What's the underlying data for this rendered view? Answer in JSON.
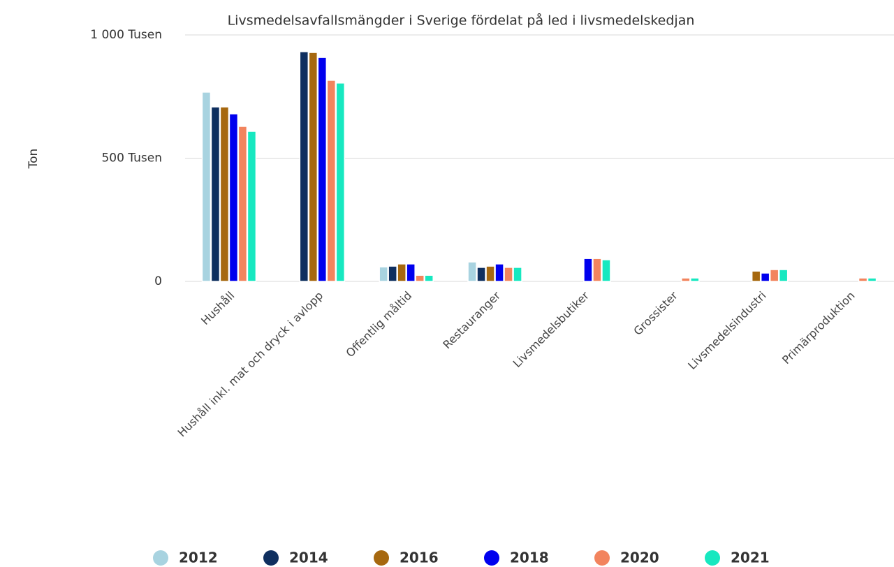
{
  "chart_data": {
    "type": "bar",
    "title": "Livsmedelsavfallsmängder i Sverige fördelat på led i livsmedelskedjan",
    "y_label": "Ton",
    "categories": [
      "Hushåll",
      "Hushåll inkl. mat och dryck i avlopp",
      "Offentlig måltid",
      "Restauranger",
      "Livsmedelsbutiker",
      "Grossister",
      "Livsmedelsindustri",
      "Primärproduktion"
    ],
    "series": [
      {
        "name": "2012",
        "color": "#a8d3e0",
        "values": [
          768000,
          null,
          59000,
          79000,
          null,
          null,
          null,
          null
        ]
      },
      {
        "name": "2014",
        "color": "#0f2f5f",
        "values": [
          708000,
          932000,
          62000,
          57000,
          null,
          null,
          null,
          null
        ]
      },
      {
        "name": "2016",
        "color": "#a6680f",
        "values": [
          708000,
          929000,
          71000,
          62000,
          null,
          null,
          42000,
          null
        ]
      },
      {
        "name": "2018",
        "color": "#0000ee",
        "values": [
          680000,
          909000,
          71000,
          71000,
          93000,
          null,
          34000,
          null
        ]
      },
      {
        "name": "2020",
        "color": "#f2845e",
        "values": [
          629000,
          816000,
          25000,
          57000,
          93000,
          14000,
          48000,
          14000
        ]
      },
      {
        "name": "2021",
        "color": "#17e8c0",
        "values": [
          609000,
          805000,
          25000,
          57000,
          88000,
          14000,
          48000,
          14000
        ]
      }
    ],
    "ylim": [
      0,
      1000000
    ],
    "yticks": [
      0,
      {
        "value": 500000,
        "label": "500 Tusen"
      },
      {
        "value": 1000000,
        "label": "1 000 Tusen"
      }
    ],
    "grid": true
  }
}
